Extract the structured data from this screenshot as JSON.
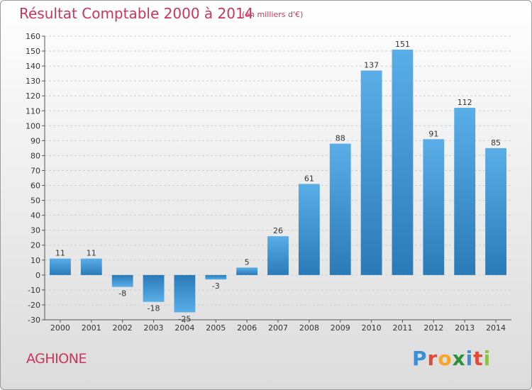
{
  "title": "Résultat Comptable 2000 à 2014",
  "subtitle": "(en milliers d'€)",
  "commune": "AGHIONE",
  "logo": "Proxiti",
  "colors": {
    "title": "#c8365a",
    "bar_top": "#5aaee8",
    "bar_bottom": "#2a7ab8"
  },
  "chart_data": {
    "type": "bar",
    "title": "Résultat Comptable 2000 à 2014",
    "xlabel": "",
    "ylabel": "",
    "ylim": [
      -30,
      160
    ],
    "ytick_step": 10,
    "grid": true,
    "categories": [
      "2000",
      "2001",
      "2002",
      "2003",
      "2004",
      "2005",
      "2006",
      "2007",
      "2008",
      "2009",
      "2010",
      "2011",
      "2012",
      "2013",
      "2014"
    ],
    "values": [
      11,
      11,
      -8,
      -18,
      -25,
      -3,
      5,
      26,
      61,
      88,
      137,
      151,
      91,
      112,
      85
    ]
  }
}
